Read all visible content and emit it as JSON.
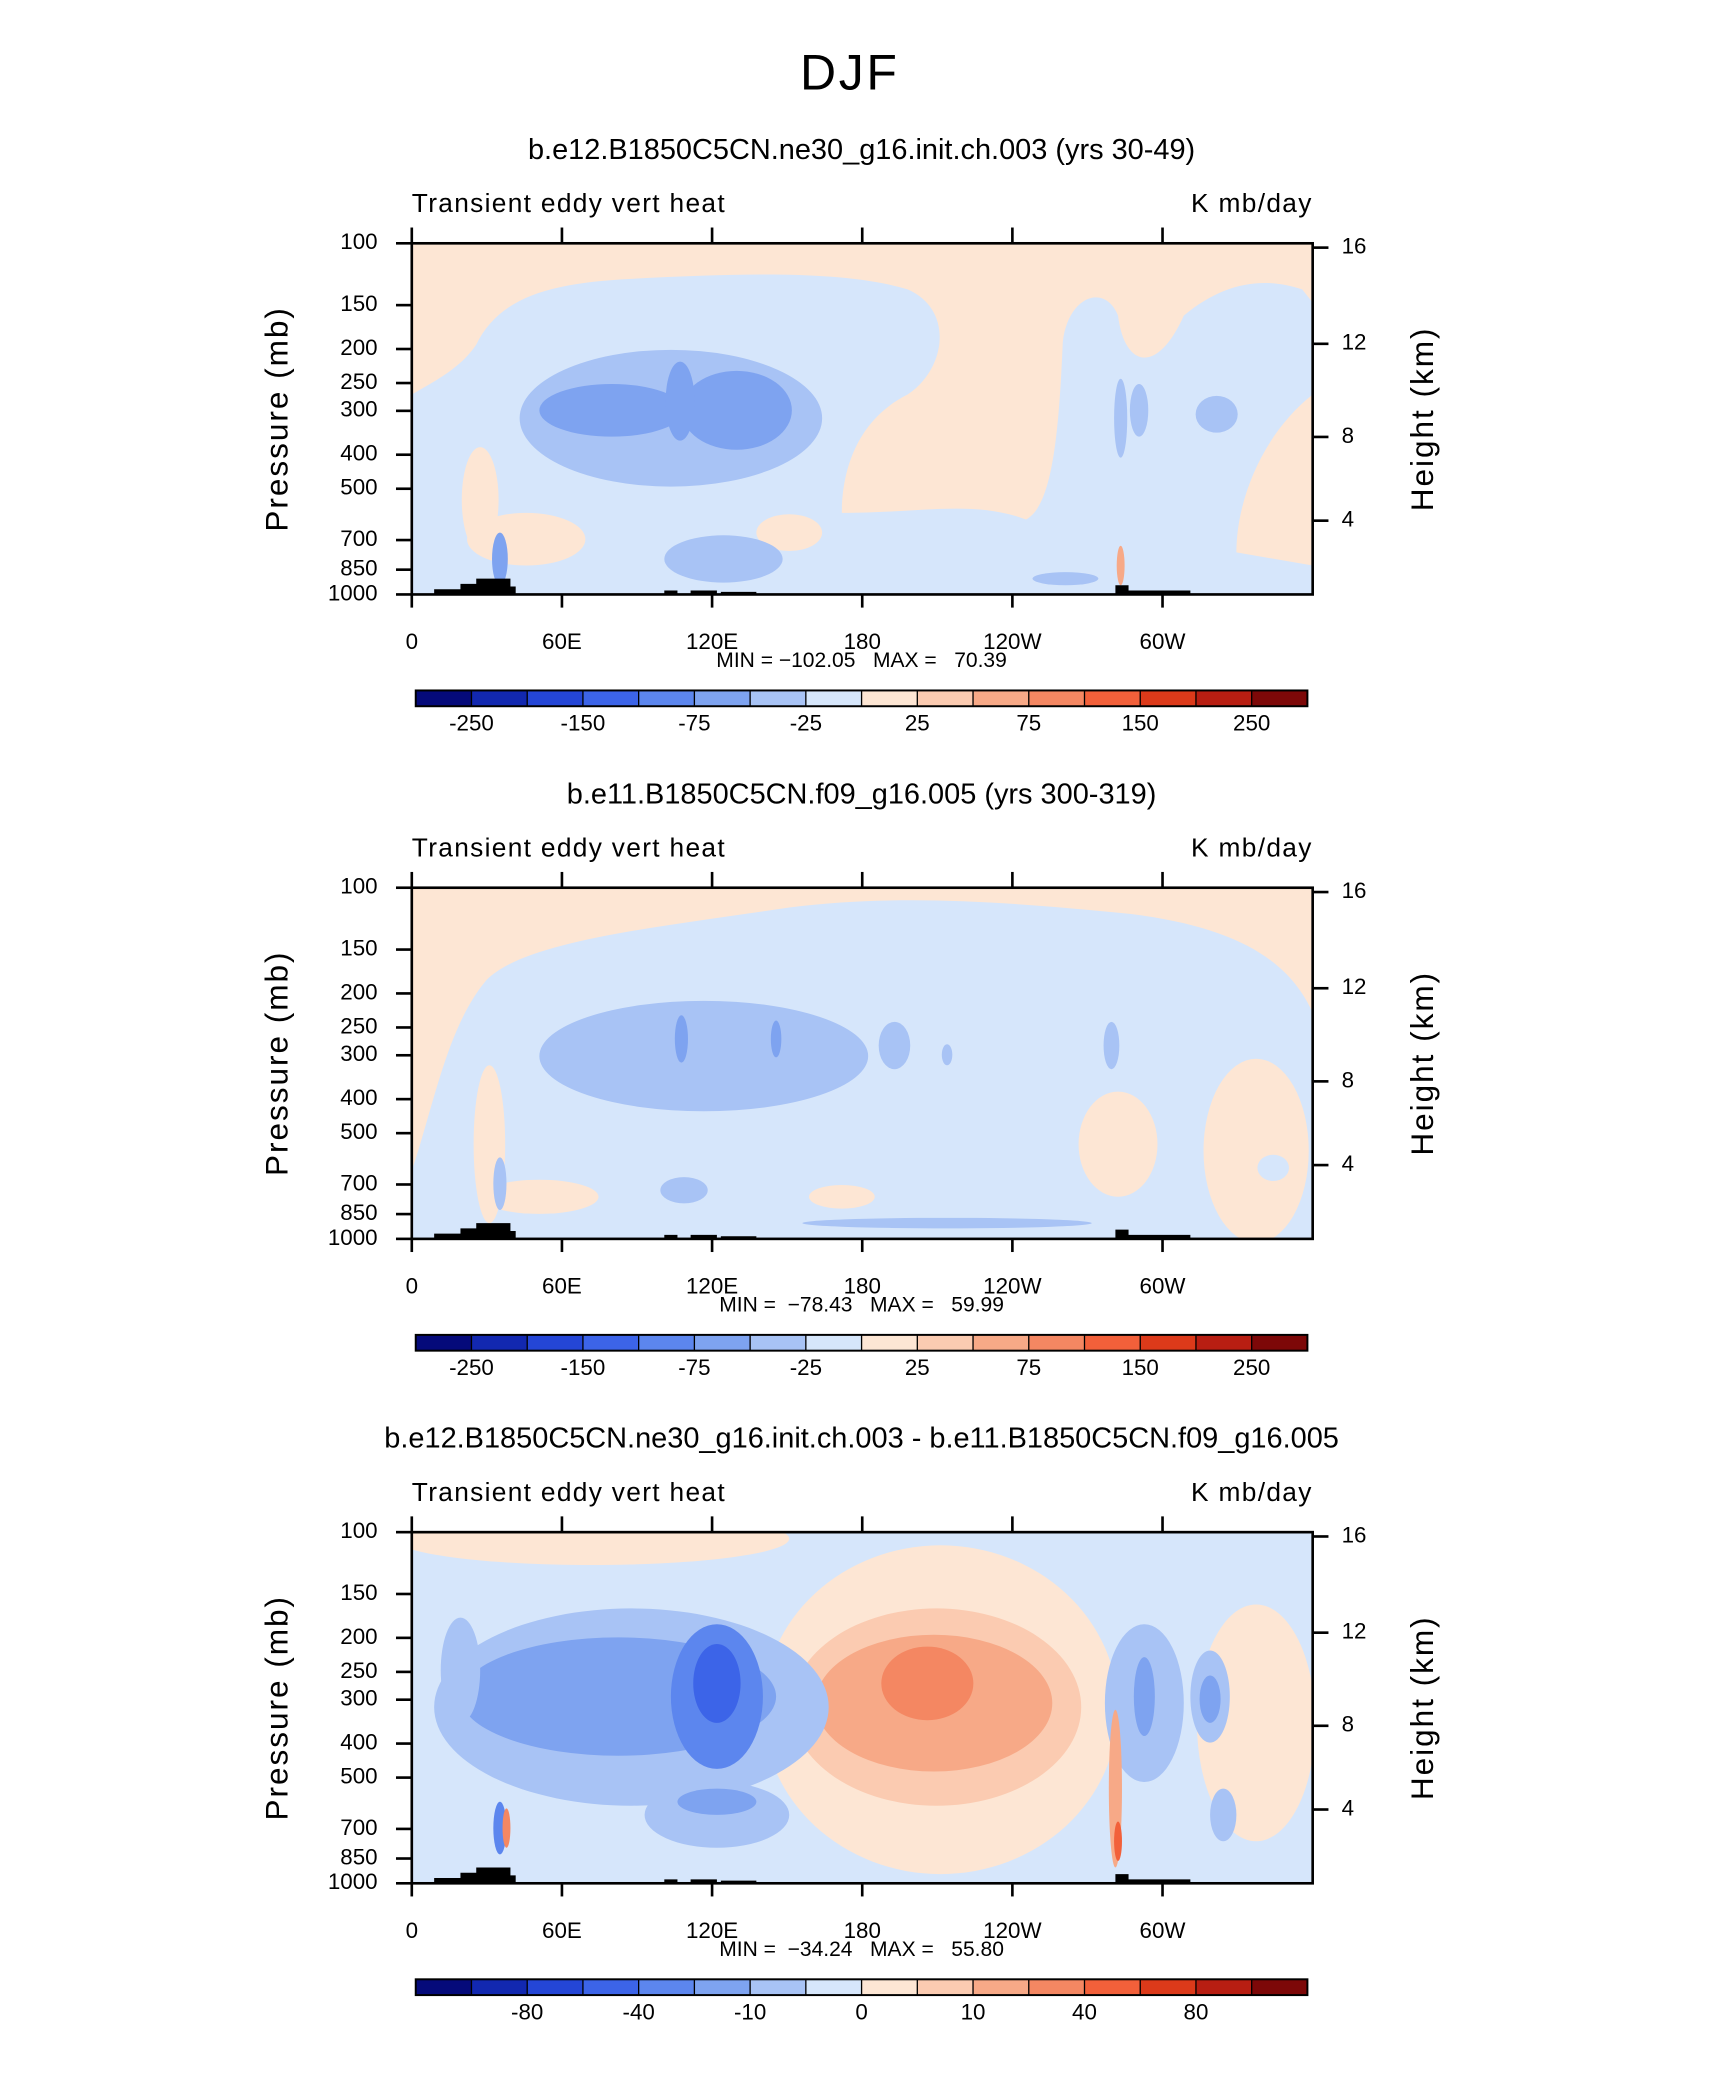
{
  "title": "DJF",
  "chart_data": [
    {
      "type": "contour",
      "title": "b.e12.B1850C5CN.ne30_g16.init.ch.003 (yrs 30-49)",
      "left_string": "Transient eddy vert heat",
      "right_string": "K mb/day",
      "ylabel": "Pressure (mb)",
      "y2label": "Height (km)",
      "stats": "MIN = −102.05   MAX =   70.39",
      "xlim": [
        0,
        360
      ],
      "xticks": [
        0,
        {
          "value": 60,
          "label": "60E"
        },
        {
          "value": 120,
          "label": "120E"
        },
        180,
        {
          "value": 240,
          "label": "120W"
        },
        {
          "value": 300,
          "label": "60W"
        }
      ],
      "ylim": [
        1000,
        100
      ],
      "y_log": true,
      "yticks": [
        100,
        150,
        200,
        250,
        300,
        400,
        500,
        700,
        850,
        1000
      ],
      "y2ticks": [
        4,
        8,
        12,
        16
      ],
      "colors": [
        "#050a7a",
        "#1228b0",
        "#2446d6",
        "#3c64e8",
        "#5c86ee",
        "#7ea3f0",
        "#a8c3f5",
        "#d6e6fb",
        "#fde6d4",
        "#fbcbb1",
        "#f7a987",
        "#f48762",
        "#f2603a",
        "#dc3a1a",
        "#b81e12",
        "#7d0808"
      ],
      "levels": [
        -250,
        null,
        -150,
        null,
        -75,
        null,
        -25,
        null,
        25,
        null,
        75,
        null,
        150,
        null,
        250
      ]
    },
    {
      "type": "contour",
      "title": "b.e11.B1850C5CN.f09_g16.005 (yrs 300-319)",
      "left_string": "Transient eddy vert heat",
      "right_string": "K mb/day",
      "ylabel": "Pressure (mb)",
      "y2label": "Height (km)",
      "stats": "MIN =  −78.43   MAX =   59.99",
      "xlim": [
        0,
        360
      ],
      "xticks": [
        0,
        {
          "value": 60,
          "label": "60E"
        },
        {
          "value": 120,
          "label": "120E"
        },
        180,
        {
          "value": 240,
          "label": "120W"
        },
        {
          "value": 300,
          "label": "60W"
        }
      ],
      "ylim": [
        1000,
        100
      ],
      "y_log": true,
      "yticks": [
        100,
        150,
        200,
        250,
        300,
        400,
        500,
        700,
        850,
        1000
      ],
      "y2ticks": [
        4,
        8,
        12,
        16
      ],
      "colors": [
        "#050a7a",
        "#1228b0",
        "#2446d6",
        "#3c64e8",
        "#5c86ee",
        "#7ea3f0",
        "#a8c3f5",
        "#d6e6fb",
        "#fde6d4",
        "#fbcbb1",
        "#f7a987",
        "#f48762",
        "#f2603a",
        "#dc3a1a",
        "#b81e12",
        "#7d0808"
      ],
      "levels": [
        -250,
        null,
        -150,
        null,
        -75,
        null,
        -25,
        null,
        25,
        null,
        75,
        null,
        150,
        null,
        250
      ]
    },
    {
      "type": "contour",
      "title": "b.e12.B1850C5CN.ne30_g16.init.ch.003 - b.e11.B1850C5CN.f09_g16.005",
      "left_string": "Transient eddy vert heat",
      "right_string": "K mb/day",
      "ylabel": "Pressure (mb)",
      "y2label": "Height (km)",
      "stats": "MIN =  −34.24   MAX =   55.80",
      "xlim": [
        0,
        360
      ],
      "xticks": [
        0,
        {
          "value": 60,
          "label": "60E"
        },
        {
          "value": 120,
          "label": "120E"
        },
        180,
        {
          "value": 240,
          "label": "120W"
        },
        {
          "value": 300,
          "label": "60W"
        }
      ],
      "ylim": [
        1000,
        100
      ],
      "y_log": true,
      "yticks": [
        100,
        150,
        200,
        250,
        300,
        400,
        500,
        700,
        850,
        1000
      ],
      "y2ticks": [
        4,
        8,
        12,
        16
      ],
      "colors": [
        "#050a7a",
        "#1228b0",
        "#2446d6",
        "#3c64e8",
        "#5c86ee",
        "#7ea3f0",
        "#a8c3f5",
        "#d6e6fb",
        "#fde6d4",
        "#fbcbb1",
        "#f7a987",
        "#f48762",
        "#f2603a",
        "#dc3a1a",
        "#b81e12",
        "#7d0808"
      ],
      "levels": [
        null,
        -80,
        null,
        -40,
        null,
        -10,
        null,
        0,
        null,
        10,
        null,
        40,
        null,
        80,
        null
      ]
    }
  ]
}
